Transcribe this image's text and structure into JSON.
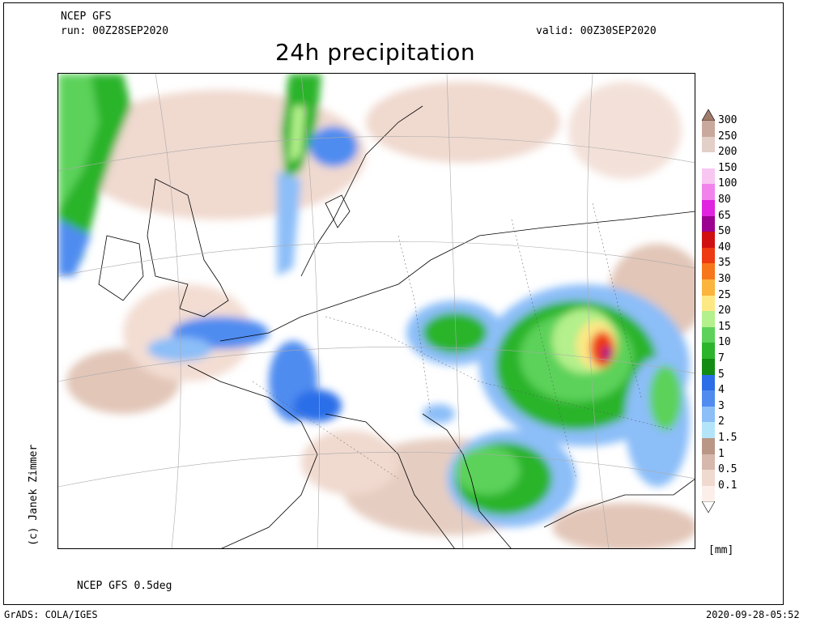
{
  "header": {
    "model": "NCEP GFS",
    "run": "run: 00Z28SEP2020",
    "valid": "valid: 00Z30SEP2020",
    "title": "24h precipitation"
  },
  "footer": {
    "resolution": "NCEP GFS 0.5deg",
    "grads": "GrADS: COLA/IGES",
    "timestamp": "2020-09-28-05:52"
  },
  "credit": "(c) Janek Zimmer",
  "legend": {
    "unit": "[mm]",
    "levels": [
      {
        "label": "300",
        "color": "#c9a99b"
      },
      {
        "label": "250",
        "color": "#e2cfc7"
      },
      {
        "label": "200",
        "color": "#ffffff"
      },
      {
        "label": "150",
        "color": "#f7c7f2"
      },
      {
        "label": "100",
        "color": "#f084ec"
      },
      {
        "label": "80",
        "color": "#e024e0"
      },
      {
        "label": "65",
        "color": "#9c0090"
      },
      {
        "label": "50",
        "color": "#d01010"
      },
      {
        "label": "40",
        "color": "#ee3a10"
      },
      {
        "label": "35",
        "color": "#f8761a"
      },
      {
        "label": "30",
        "color": "#fbb43c"
      },
      {
        "label": "25",
        "color": "#fde884"
      },
      {
        "label": "20",
        "color": "#b4f08c"
      },
      {
        "label": "15",
        "color": "#5cd25a"
      },
      {
        "label": "10",
        "color": "#2cb42c"
      },
      {
        "label": "7",
        "color": "#128c12"
      },
      {
        "label": "5",
        "color": "#2c6ee8"
      },
      {
        "label": "4",
        "color": "#508cf0"
      },
      {
        "label": "3",
        "color": "#8cbef8"
      },
      {
        "label": "2",
        "color": "#b4e4fa"
      },
      {
        "label": "1.5",
        "color": "#b99686"
      },
      {
        "label": "1",
        "color": "#d6b8ac"
      },
      {
        "label": "0.5",
        "color": "#f0d9cf"
      },
      {
        "label": "0.1",
        "color": "#fcefe9"
      }
    ]
  }
}
